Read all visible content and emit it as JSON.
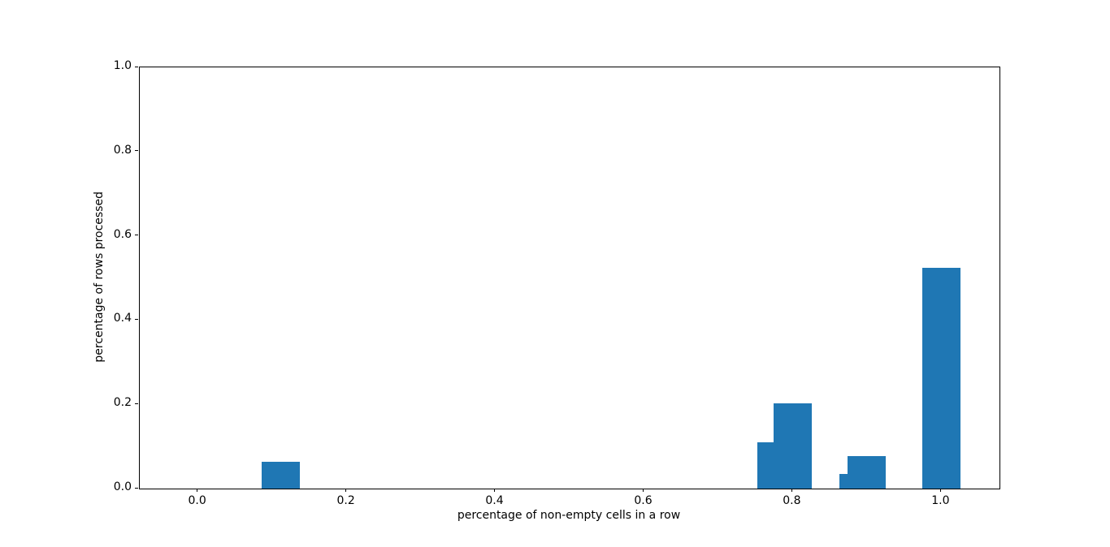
{
  "figure": {
    "background": "#ffffff",
    "axes_facecolor": "#ffffff",
    "spine_color": "#000000"
  },
  "chart_data": {
    "type": "bar",
    "title": "",
    "xlabel": "percentage of non-empty cells in a row",
    "ylabel": "percentage of rows processed",
    "bar_color": "#1f77b4",
    "bar_width": 0.0514,
    "bars": [
      {
        "x": 0.111,
        "height": 0.063
      },
      {
        "x": 0.778,
        "height": 0.109
      },
      {
        "x": 0.8,
        "height": 0.202
      },
      {
        "x": 0.889,
        "height": 0.034
      },
      {
        "x": 0.9,
        "height": 0.078
      },
      {
        "x": 1.0,
        "height": 0.525
      }
    ],
    "xlim": [
      -0.0783,
      1.0783
    ],
    "ylim": [
      0,
      1
    ],
    "xticks": [
      {
        "value": 0.0,
        "label": "0.0"
      },
      {
        "value": 0.2,
        "label": "0.2"
      },
      {
        "value": 0.4,
        "label": "0.4"
      },
      {
        "value": 0.6,
        "label": "0.6"
      },
      {
        "value": 0.8,
        "label": "0.8"
      },
      {
        "value": 1.0,
        "label": "1.0"
      }
    ],
    "yticks": [
      {
        "value": 0.0,
        "label": "0.0"
      },
      {
        "value": 0.2,
        "label": "0.2"
      },
      {
        "value": 0.4,
        "label": "0.4"
      },
      {
        "value": 0.6,
        "label": "0.6"
      },
      {
        "value": 0.8,
        "label": "0.8"
      },
      {
        "value": 1.0,
        "label": "1.0"
      }
    ],
    "grid": false,
    "legend": null
  }
}
